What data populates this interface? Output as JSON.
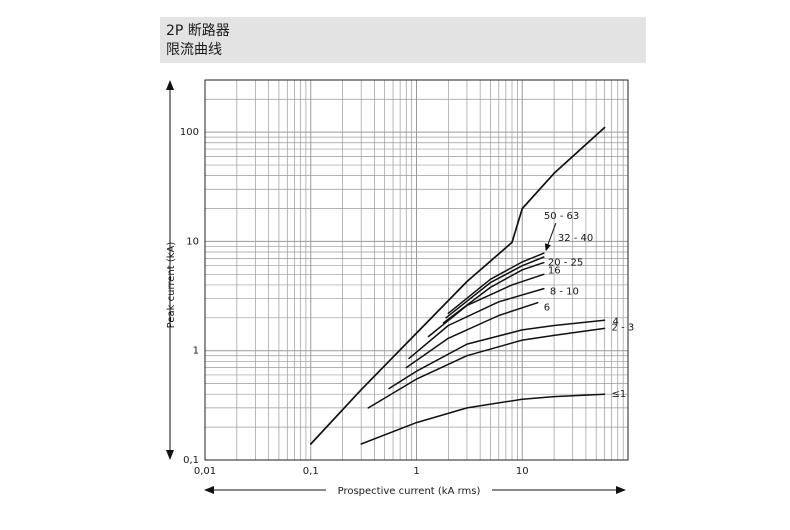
{
  "header": {
    "title_line1": "2P 断路器",
    "title_line2": "限流曲线"
  },
  "colors": {
    "header_bg": "#e3e3e3",
    "grid": "#9a9a9a",
    "curve": "#111111",
    "frame": "#222222"
  },
  "chart_data": {
    "type": "line",
    "title": "",
    "xlabel": "Prospective current (kA rms)",
    "ylabel": "Peak current (kA)",
    "xscale": "log",
    "yscale": "log",
    "xlim": [
      0.01,
      100
    ],
    "ylim": [
      0.1,
      300
    ],
    "grid": true,
    "legend": "inline curve labels at right end of each curve",
    "x_tick_labels": [
      {
        "value": 0.01,
        "label": "0,01"
      },
      {
        "value": 0.1,
        "label": "0,1"
      },
      {
        "value": 1,
        "label": "1"
      },
      {
        "value": 10,
        "label": "10"
      }
    ],
    "y_tick_labels": [
      {
        "value": 0.1,
        "label": "0,1"
      },
      {
        "value": 1,
        "label": "1"
      },
      {
        "value": 10,
        "label": "10"
      },
      {
        "value": 100,
        "label": "100"
      }
    ],
    "series": [
      {
        "name": "",
        "points": [
          [
            0.1,
            0.14
          ],
          [
            0.3,
            0.44
          ],
          [
            1,
            1.45
          ],
          [
            3,
            4.3
          ],
          [
            8,
            9.8
          ],
          [
            10,
            20
          ],
          [
            20,
            42
          ],
          [
            60,
            110
          ]
        ]
      },
      {
        "name": "50 - 63",
        "points": [
          [
            2,
            2.2
          ],
          [
            5,
            4.5
          ],
          [
            10,
            6.5
          ],
          [
            16,
            7.8
          ]
        ]
      },
      {
        "name": "32 - 40",
        "points": [
          [
            1.9,
            2.0
          ],
          [
            5,
            4.2
          ],
          [
            10,
            6.0
          ],
          [
            16,
            7.2
          ]
        ]
      },
      {
        "name": "20 - 25",
        "points": [
          [
            1.8,
            1.8
          ],
          [
            5,
            3.8
          ],
          [
            10,
            5.5
          ],
          [
            16,
            6.4
          ]
        ]
      },
      {
        "name": "16",
        "points": [
          [
            1.3,
            1.35
          ],
          [
            3,
            2.6
          ],
          [
            8,
            4.0
          ],
          [
            16,
            5.0
          ]
        ]
      },
      {
        "name": "8 - 10",
        "points": [
          [
            0.85,
            0.85
          ],
          [
            2,
            1.7
          ],
          [
            6,
            2.8
          ],
          [
            16,
            3.7
          ]
        ]
      },
      {
        "name": "6",
        "points": [
          [
            0.8,
            0.7
          ],
          [
            2,
            1.3
          ],
          [
            6,
            2.1
          ],
          [
            14,
            2.75
          ]
        ]
      },
      {
        "name": "4",
        "points": [
          [
            0.55,
            0.45
          ],
          [
            1,
            0.65
          ],
          [
            3,
            1.15
          ],
          [
            10,
            1.55
          ],
          [
            20,
            1.7
          ],
          [
            60,
            1.9
          ]
        ]
      },
      {
        "name": "2 - 3",
        "points": [
          [
            0.35,
            0.3
          ],
          [
            1,
            0.55
          ],
          [
            3,
            0.9
          ],
          [
            10,
            1.25
          ],
          [
            20,
            1.38
          ],
          [
            60,
            1.6
          ]
        ]
      },
      {
        "name": "≤1",
        "points": [
          [
            0.3,
            0.14
          ],
          [
            1,
            0.22
          ],
          [
            3,
            0.3
          ],
          [
            10,
            0.36
          ],
          [
            20,
            0.38
          ],
          [
            60,
            0.4
          ]
        ]
      }
    ]
  }
}
